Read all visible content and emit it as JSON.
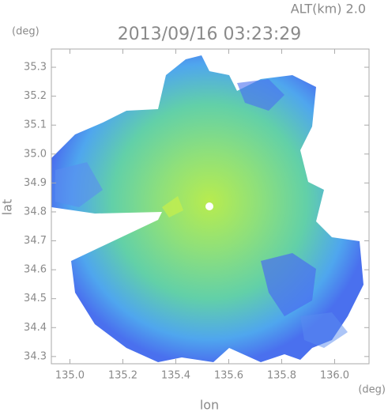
{
  "header": {
    "altitude": "ALT(km) 2.0",
    "title": "2013/09/16 03:23:29"
  },
  "axes": {
    "x_label": "lon",
    "y_label": "lat",
    "x_unit": "(deg)",
    "y_unit": "(deg)",
    "xlim": [
      134.93,
      136.13
    ],
    "ylim": [
      34.275,
      35.363
    ],
    "xticks": [
      {
        "value": 135,
        "label": "135.0"
      },
      {
        "value": 135.2,
        "label": "135.2"
      },
      {
        "value": 135.4,
        "label": "135.4"
      },
      {
        "value": 135.6,
        "label": "135.6"
      },
      {
        "value": 135.8,
        "label": "135.8"
      },
      {
        "value": 136,
        "label": "136.0"
      }
    ],
    "yticks": [
      {
        "value": 34.3,
        "label": "34.3"
      },
      {
        "value": 34.4,
        "label": "34.4"
      },
      {
        "value": 34.5,
        "label": "34.5"
      },
      {
        "value": 34.6,
        "label": "34.6"
      },
      {
        "value": 34.7,
        "label": "34.7"
      },
      {
        "value": 34.8,
        "label": "34.8"
      },
      {
        "value": 34.9,
        "label": "34.9"
      },
      {
        "value": 35,
        "label": "35.0"
      },
      {
        "value": 35.1,
        "label": "35.1"
      },
      {
        "value": 35.2,
        "label": "35.2"
      },
      {
        "value": 35.3,
        "label": "35.3"
      }
    ]
  }
}
